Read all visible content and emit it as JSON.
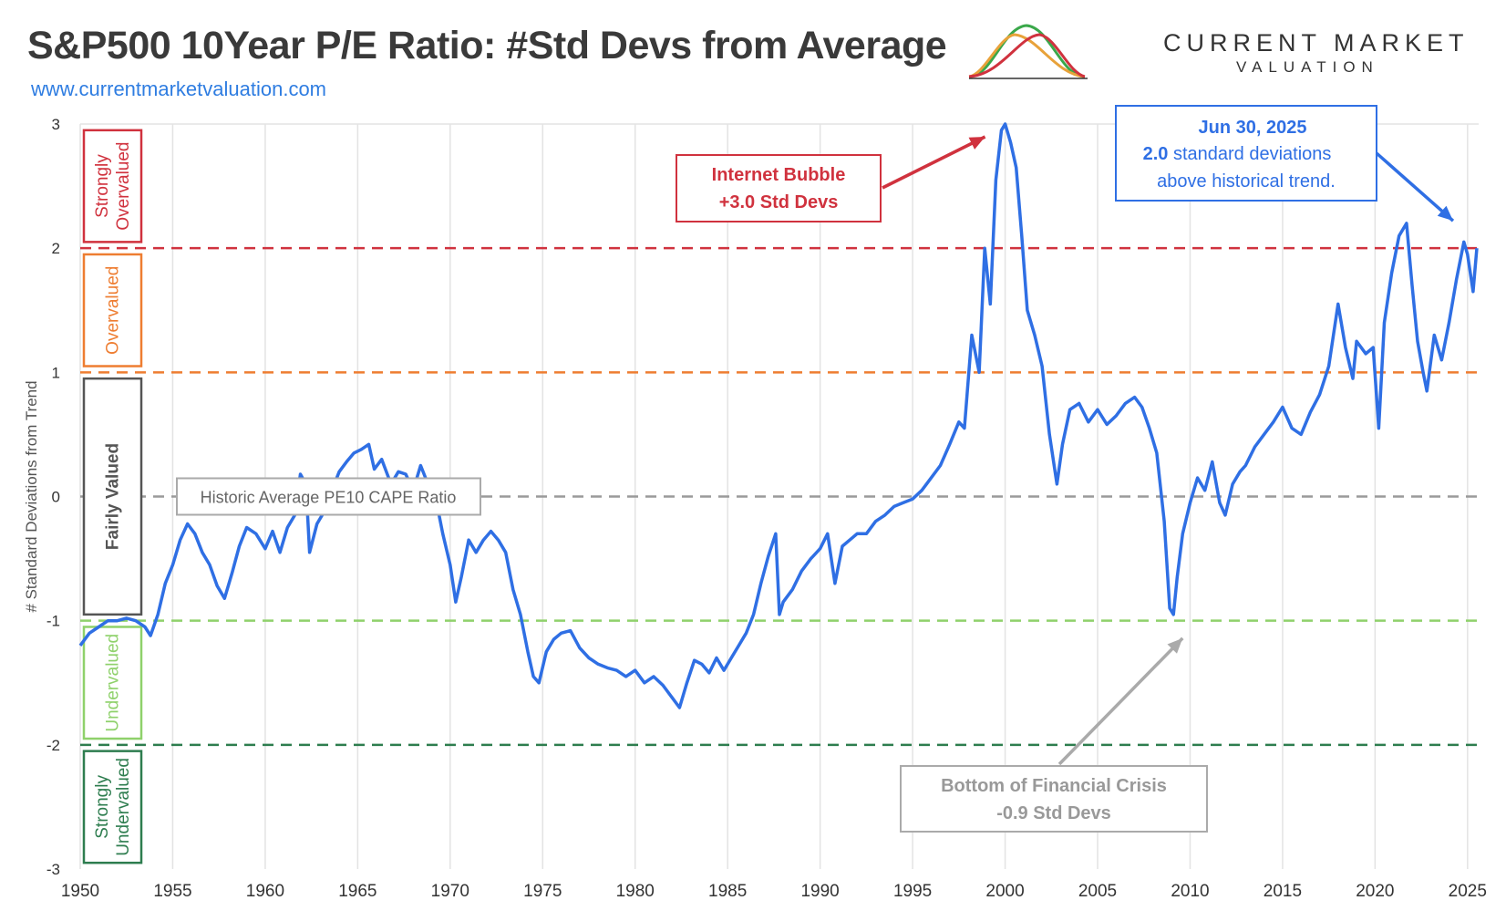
{
  "header": {
    "title": "S&P500 10Year P/E Ratio: #Std Devs from Average",
    "website": "www.currentmarketvaluation.com",
    "logo_line1": "CURRENT MARKET",
    "logo_line2": "VALUATION"
  },
  "colors": {
    "line": "#2f6fe4",
    "strongly_overvalued": "#d0323e",
    "overvalued": "#ee7d31",
    "fairly_valued": "#555555",
    "undervalued": "#8fd16b",
    "strongly_undervalued": "#2e7d4f",
    "average": "#9a9a9a",
    "grid": "#e3e3e3"
  },
  "chart_data": {
    "type": "line",
    "title": "S&P500 10Year P/E Ratio: #Std Devs from Average",
    "xlabel": "",
    "ylabel": "# Standard Deviations from Trend",
    "xlim": [
      1950,
      2025.6
    ],
    "ylim": [
      -3,
      3
    ],
    "x_ticks": [
      1950,
      1955,
      1960,
      1965,
      1970,
      1975,
      1980,
      1985,
      1990,
      1995,
      2000,
      2005,
      2010,
      2015,
      2020,
      2025
    ],
    "y_ticks": [
      3,
      2,
      1,
      0,
      -1,
      -2,
      -3
    ],
    "grid": "vertical",
    "series": [
      {
        "name": "S&P500 CAPE # Std Devs from Average",
        "x": [
          1950.0,
          1950.5,
          1951.0,
          1951.5,
          1952.0,
          1952.5,
          1953.0,
          1953.5,
          1953.8,
          1954.2,
          1954.6,
          1955.0,
          1955.4,
          1955.8,
          1956.2,
          1956.6,
          1957.0,
          1957.4,
          1957.8,
          1958.2,
          1958.6,
          1959.0,
          1959.5,
          1960.0,
          1960.4,
          1960.8,
          1961.2,
          1961.6,
          1961.9,
          1962.2,
          1962.4,
          1962.8,
          1963.2,
          1963.6,
          1964.0,
          1964.4,
          1964.8,
          1965.2,
          1965.6,
          1965.9,
          1966.3,
          1966.8,
          1967.2,
          1967.6,
          1968.0,
          1968.4,
          1968.8,
          1969.2,
          1969.6,
          1970.0,
          1970.3,
          1970.6,
          1971.0,
          1971.4,
          1971.8,
          1972.2,
          1972.6,
          1973.0,
          1973.4,
          1973.8,
          1974.2,
          1974.5,
          1974.8,
          1975.2,
          1975.6,
          1976.0,
          1976.5,
          1977.0,
          1977.5,
          1978.0,
          1978.5,
          1979.0,
          1979.5,
          1980.0,
          1980.5,
          1981.0,
          1981.5,
          1982.0,
          1982.4,
          1982.8,
          1983.2,
          1983.6,
          1984.0,
          1984.4,
          1984.8,
          1985.2,
          1985.6,
          1986.0,
          1986.4,
          1986.8,
          1987.2,
          1987.6,
          1987.8,
          1988.0,
          1988.5,
          1989.0,
          1989.5,
          1990.0,
          1990.4,
          1990.8,
          1991.2,
          1991.6,
          1992.0,
          1992.5,
          1993.0,
          1993.5,
          1994.0,
          1994.5,
          1995.0,
          1995.5,
          1996.0,
          1996.5,
          1997.0,
          1997.5,
          1997.8,
          1998.2,
          1998.6,
          1998.9,
          1999.2,
          1999.5,
          1999.8,
          2000.0,
          2000.3,
          2000.6,
          2000.9,
          2001.2,
          2001.6,
          2002.0,
          2002.4,
          2002.8,
          2003.1,
          2003.5,
          2004.0,
          2004.5,
          2005.0,
          2005.5,
          2006.0,
          2006.5,
          2007.0,
          2007.4,
          2007.8,
          2008.2,
          2008.6,
          2008.9,
          2009.1,
          2009.3,
          2009.6,
          2010.0,
          2010.4,
          2010.8,
          2011.2,
          2011.6,
          2011.9,
          2012.3,
          2012.7,
          2013.0,
          2013.5,
          2014.0,
          2014.5,
          2015.0,
          2015.5,
          2016.0,
          2016.5,
          2017.0,
          2017.5,
          2018.0,
          2018.4,
          2018.8,
          2019.0,
          2019.5,
          2019.9,
          2020.2,
          2020.5,
          2020.9,
          2021.3,
          2021.7,
          2022.0,
          2022.3,
          2022.6,
          2022.8,
          2023.2,
          2023.6,
          2024.0,
          2024.4,
          2024.8,
          2025.0,
          2025.3,
          2025.5
        ],
        "y": [
          -1.2,
          -1.1,
          -1.05,
          -1.0,
          -1.0,
          -0.98,
          -1.0,
          -1.05,
          -1.12,
          -0.95,
          -0.7,
          -0.55,
          -0.35,
          -0.22,
          -0.3,
          -0.45,
          -0.55,
          -0.72,
          -0.82,
          -0.62,
          -0.4,
          -0.25,
          -0.3,
          -0.42,
          -0.28,
          -0.45,
          -0.25,
          -0.15,
          0.18,
          0.1,
          -0.45,
          -0.22,
          -0.12,
          0.05,
          0.2,
          0.28,
          0.35,
          0.38,
          0.42,
          0.22,
          0.3,
          0.1,
          0.2,
          0.18,
          0.05,
          0.25,
          0.1,
          0.0,
          -0.3,
          -0.55,
          -0.85,
          -0.65,
          -0.35,
          -0.45,
          -0.35,
          -0.28,
          -0.35,
          -0.45,
          -0.75,
          -0.95,
          -1.25,
          -1.45,
          -1.5,
          -1.25,
          -1.15,
          -1.1,
          -1.08,
          -1.22,
          -1.3,
          -1.35,
          -1.38,
          -1.4,
          -1.45,
          -1.4,
          -1.5,
          -1.45,
          -1.52,
          -1.62,
          -1.7,
          -1.5,
          -1.32,
          -1.35,
          -1.42,
          -1.3,
          -1.4,
          -1.3,
          -1.2,
          -1.1,
          -0.95,
          -0.7,
          -0.48,
          -0.3,
          -0.95,
          -0.85,
          -0.75,
          -0.6,
          -0.5,
          -0.42,
          -0.3,
          -0.7,
          -0.4,
          -0.35,
          -0.3,
          -0.3,
          -0.2,
          -0.15,
          -0.08,
          -0.05,
          -0.02,
          0.05,
          0.15,
          0.25,
          0.42,
          0.6,
          0.55,
          1.3,
          1.0,
          2.0,
          1.55,
          2.55,
          2.95,
          3.0,
          2.85,
          2.65,
          2.1,
          1.5,
          1.3,
          1.05,
          0.5,
          0.1,
          0.42,
          0.7,
          0.75,
          0.6,
          0.7,
          0.58,
          0.65,
          0.75,
          0.8,
          0.72,
          0.55,
          0.35,
          -0.2,
          -0.9,
          -0.95,
          -0.65,
          -0.3,
          -0.05,
          0.15,
          0.05,
          0.28,
          -0.05,
          -0.15,
          0.1,
          0.2,
          0.25,
          0.4,
          0.5,
          0.6,
          0.72,
          0.55,
          0.5,
          0.68,
          0.82,
          1.05,
          1.55,
          1.2,
          0.95,
          1.25,
          1.15,
          1.2,
          0.55,
          1.4,
          1.8,
          2.1,
          2.2,
          1.7,
          1.25,
          1.0,
          0.85,
          1.3,
          1.1,
          1.4,
          1.75,
          2.05,
          1.95,
          1.65,
          2.0
        ]
      }
    ],
    "reference_lines": [
      {
        "value": 2,
        "label": "Strongly Overvalued",
        "color_key": "strongly_overvalued"
      },
      {
        "value": 1,
        "label": "Overvalued",
        "color_key": "overvalued"
      },
      {
        "value": 0,
        "label": "Historic Average PE10 CAPE Ratio",
        "color_key": "average"
      },
      {
        "value": -1,
        "label": "Undervalued",
        "color_key": "undervalued"
      },
      {
        "value": -2,
        "label": "Strongly Undervalued",
        "color_key": "strongly_undervalued"
      }
    ],
    "zones": {
      "strongly_overvalued": "Strongly Overvalued",
      "overvalued": "Overvalued",
      "fairly_valued": "Fairly Valued",
      "undervalued": "Undervalued",
      "strongly_undervalued": "Strongly Undervalued"
    },
    "annotations": {
      "average_label": "Historic Average PE10 CAPE Ratio",
      "bubble": {
        "line1": "Internet Bubble",
        "line2": "+3.0 Std Devs",
        "x": 2000.0,
        "y": 3.0
      },
      "latest": {
        "line1": "Jun 30, 2025",
        "line2_bold": "2.0",
        "line2_rest": " standard deviations",
        "line3": "above historical trend.",
        "x": 2025.5,
        "y": 2.0
      },
      "crisis": {
        "line1": "Bottom of Financial Crisis",
        "line2": "-0.9 Std Devs",
        "x": 2009.3,
        "y": -0.95
      }
    }
  }
}
